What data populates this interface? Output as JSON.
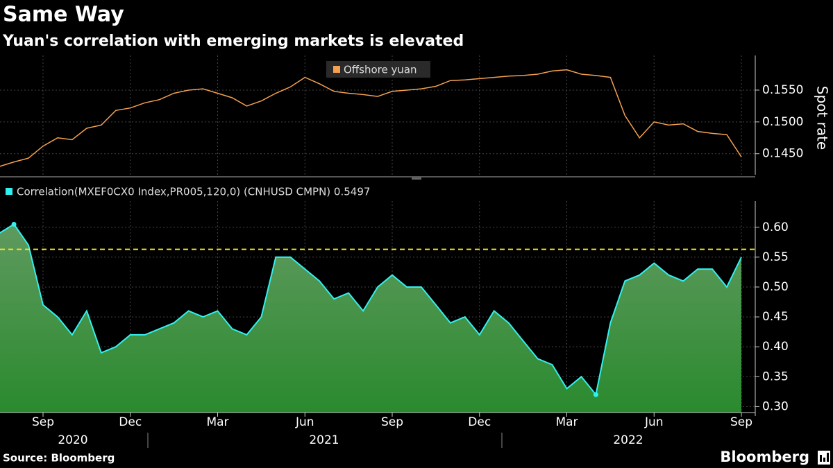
{
  "header": {
    "title": "Same Way",
    "subtitle": "Yuan's correlation with emerging markets is elevated"
  },
  "footer": {
    "source": "Source: Bloomberg",
    "brand": "Bloomberg"
  },
  "chart_data": [
    {
      "type": "line",
      "ylabel": "Spot rate",
      "series": [
        {
          "name": "Offshore yuan",
          "color": "#f5a050",
          "values": [
            0.143,
            0.1437,
            0.1443,
            0.1462,
            0.1475,
            0.1472,
            0.149,
            0.1495,
            0.1518,
            0.1522,
            0.153,
            0.1535,
            0.1545,
            0.155,
            0.1552,
            0.1545,
            0.1538,
            0.1525,
            0.1533,
            0.1545,
            0.1555,
            0.157,
            0.156,
            0.1548,
            0.1545,
            0.1543,
            0.154,
            0.1548,
            0.155,
            0.1552,
            0.1556,
            0.1565,
            0.1566,
            0.1568,
            0.157,
            0.1572,
            0.1573,
            0.1575,
            0.158,
            0.1582,
            0.1575,
            0.1573,
            0.157,
            0.151,
            0.1475,
            0.15,
            0.1495,
            0.1497,
            0.1485,
            0.1482,
            0.148,
            0.1445
          ]
        }
      ],
      "ylim": [
        0.1417,
        0.1599
      ],
      "yticks": [
        {
          "value": 0.155,
          "label": "0.1550"
        },
        {
          "value": 0.15,
          "label": "0.1500"
        },
        {
          "value": 0.145,
          "label": "0.1450"
        }
      ],
      "grid": true
    },
    {
      "type": "area",
      "series": [
        {
          "name": "Correlation(MXEF0CX0 Index,PR005,120,0) (CNHUSD CMPN) 0.5497",
          "color": "#33f0f0",
          "values": [
            0.59,
            0.605,
            0.57,
            0.47,
            0.45,
            0.42,
            0.46,
            0.39,
            0.4,
            0.42,
            0.42,
            0.43,
            0.44,
            0.46,
            0.45,
            0.46,
            0.43,
            0.42,
            0.45,
            0.55,
            0.55,
            0.53,
            0.51,
            0.48,
            0.49,
            0.46,
            0.5,
            0.52,
            0.5,
            0.5,
            0.47,
            0.44,
            0.45,
            0.42,
            0.46,
            0.44,
            0.41,
            0.38,
            0.37,
            0.33,
            0.35,
            0.32,
            0.44,
            0.51,
            0.52,
            0.54,
            0.52,
            0.51,
            0.53,
            0.53,
            0.5,
            0.55
          ]
        }
      ],
      "threshold": 0.563,
      "threshold_color": "#f0e828",
      "categories": [
        null,
        null,
        null,
        "Sep",
        null,
        null,
        null,
        null,
        null,
        "Dec",
        null,
        null,
        null,
        null,
        null,
        "Mar",
        null,
        null,
        null,
        null,
        null,
        "Jun",
        null,
        null,
        null,
        null,
        null,
        "Sep",
        null,
        null,
        null,
        null,
        null,
        "Dec",
        null,
        null,
        null,
        null,
        null,
        "Mar",
        null,
        null,
        null,
        null,
        null,
        "Jun",
        null,
        null,
        null,
        null,
        null,
        "Sep"
      ],
      "x_groups": [
        "2020",
        "2021",
        "2022"
      ],
      "ylim": [
        0.29,
        0.638
      ],
      "yticks": [
        {
          "value": 0.6,
          "label": "0.60"
        },
        0.55,
        {
          "value": 0.5,
          "label": "0.50"
        },
        0.45,
        {
          "value": 0.4,
          "label": "0.40"
        },
        0.35,
        {
          "value": 0.3,
          "label": "0.30"
        }
      ],
      "grid": true
    }
  ]
}
